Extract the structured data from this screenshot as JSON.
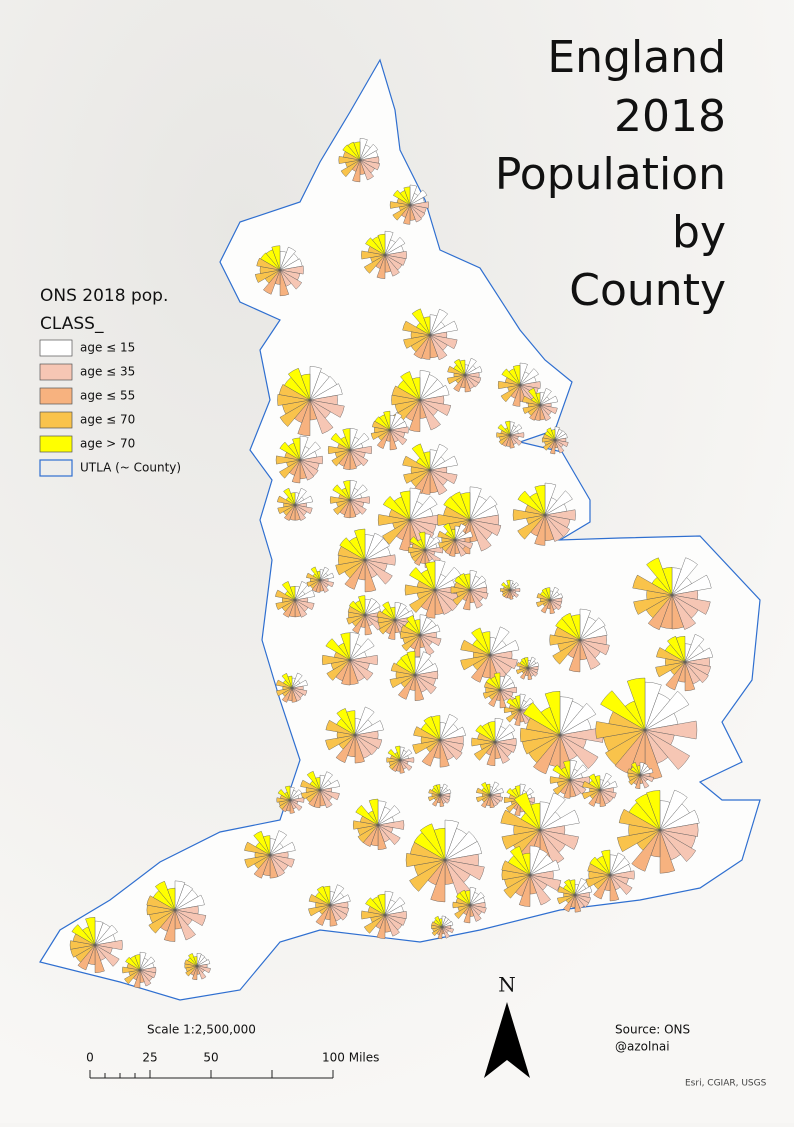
{
  "map": {
    "title_lines": [
      "England",
      "2018",
      "Population",
      "by",
      "County"
    ],
    "legend": {
      "title": "ONS 2018 pop.",
      "field": "CLASS_",
      "items": [
        {
          "label": "age ≤ 15",
          "color": "#ffffff"
        },
        {
          "label": "age ≤ 35",
          "color": "#f6c6b4"
        },
        {
          "label": "age ≤ 55",
          "color": "#f7b27f"
        },
        {
          "label": "age ≤ 70",
          "color": "#f9c34b"
        },
        {
          "label": "age > 70",
          "color": "#ffff00"
        }
      ],
      "boundary_label": "UTLA (~ County)"
    },
    "scale": {
      "text": "Scale 1:2,500,000",
      "ticks": [
        "0",
        "25",
        "50",
        "100 Miles"
      ]
    },
    "north": "N",
    "source": "Source: ONS",
    "author": "@azolnai",
    "attribution": "Esri, CGIAR, USGS"
  }
}
